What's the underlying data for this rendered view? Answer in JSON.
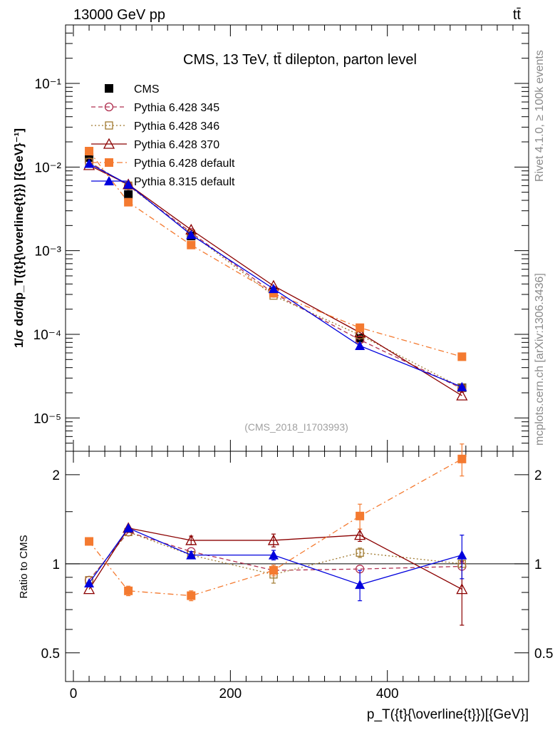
{
  "header": {
    "left": "13000 GeV pp",
    "right": "tt̄"
  },
  "side_labels": {
    "rivet": "Rivet 4.1.0, ≥ 100k events",
    "mcplots": "mcplots.cern.ch [arXiv:1306.3436]"
  },
  "chart_data": [
    {
      "type": "line",
      "scale": "log",
      "title": "CMS, 13 TeV, tt̄ dilepton, parton level",
      "watermark": "(CMS_2018_I1703993)",
      "ylabel": "1/σ dσ/dp_T({t}{\\overline{t}}) [{GeV}⁻¹]",
      "xlabel": "p_T({t}{\\overline{t}})[{GeV}]",
      "xlim": [
        -10,
        580
      ],
      "ylim": [
        4e-06,
        0.5
      ],
      "y_ticks": [
        {
          "value": 0.1,
          "label": "10⁻¹"
        },
        {
          "value": 0.01,
          "label": "10⁻²"
        },
        {
          "value": 0.001,
          "label": "10⁻³"
        },
        {
          "value": 0.0001,
          "label": "10⁻⁴"
        },
        {
          "value": 1e-05,
          "label": "10⁻⁵"
        }
      ],
      "x": [
        20,
        70,
        150,
        255,
        365,
        495
      ],
      "series": [
        {
          "name": "CMS",
          "color": "#000000",
          "marker": "square-filled",
          "dash": "none",
          "values": [
            0.013,
            0.0047,
            0.0015,
            0.00032,
            9e-05,
            2.3e-05
          ]
        },
        {
          "name": "Pythia 6.428 345",
          "color": "#b03050",
          "marker": "circle-open",
          "dash": "6,4",
          "values": [
            0.0115,
            0.006,
            0.00165,
            0.00031,
            8.6e-05,
            2.25e-05
          ]
        },
        {
          "name": "Pythia 6.428 346",
          "color": "#a07a30",
          "marker": "square-open",
          "dash": "2,3",
          "values": [
            0.0115,
            0.006,
            0.0016,
            0.00029,
            9.8e-05,
            2.3e-05
          ]
        },
        {
          "name": "Pythia 6.428 370",
          "color": "#8b0000",
          "marker": "triangle-open",
          "dash": "none",
          "values": [
            0.0105,
            0.0062,
            0.00178,
            0.00038,
            0.000105,
            1.85e-05
          ]
        },
        {
          "name": "Pythia 6.428 default",
          "color": "#f47a30",
          "marker": "square-filled",
          "dash": "8,4,2,4",
          "values": [
            0.0155,
            0.0038,
            0.00117,
            0.00031,
            0.00012,
            5.4e-05
          ]
        },
        {
          "name": "Pythia 8.315 default",
          "color": "#0000dd",
          "marker": "triangle-filled",
          "dash": "none",
          "values": [
            0.011,
            0.0062,
            0.00155,
            0.00035,
            7.3e-05,
            2.35e-05
          ]
        }
      ]
    },
    {
      "type": "line",
      "ylabel": "Ratio to CMS",
      "xlim": [
        -10,
        580
      ],
      "ylim": [
        0.4,
        2.4
      ],
      "reference": 1,
      "x_ticks": [
        0,
        200,
        400
      ],
      "y_ticks": [
        {
          "value": 0.5,
          "label": "0.5"
        },
        {
          "value": 1,
          "label": "1"
        },
        {
          "value": 2,
          "label": "2"
        }
      ],
      "x": [
        20,
        70,
        150,
        255,
        365,
        495
      ],
      "series": [
        {
          "name": "Pythia 6.428 345",
          "values": [
            0.88,
            1.28,
            1.1,
            0.95,
            0.96,
            0.98
          ],
          "err": [
            0,
            0,
            0,
            0,
            0,
            0
          ]
        },
        {
          "name": "Pythia 6.428 346",
          "values": [
            0.88,
            1.28,
            1.07,
            0.92,
            1.09,
            1.0
          ],
          "err": [
            0,
            0,
            0,
            0.06,
            0.04,
            0
          ]
        },
        {
          "name": "Pythia 6.428 370",
          "values": [
            0.82,
            1.32,
            1.2,
            1.2,
            1.25,
            0.82
          ],
          "err": [
            0,
            0,
            0.04,
            0.06,
            0.06,
            0.2
          ]
        },
        {
          "name": "Pythia 6.428 default",
          "values": [
            1.19,
            0.81,
            0.78,
            0.95,
            1.45,
            2.26
          ],
          "err": [
            0,
            0.03,
            0.03,
            0.04,
            0.14,
            0.28
          ]
        },
        {
          "name": "Pythia 8.315 default",
          "values": [
            0.86,
            1.32,
            1.07,
            1.07,
            0.85,
            1.07
          ],
          "err": [
            0,
            0,
            0.03,
            0.04,
            0.1,
            0.18
          ]
        }
      ]
    }
  ]
}
